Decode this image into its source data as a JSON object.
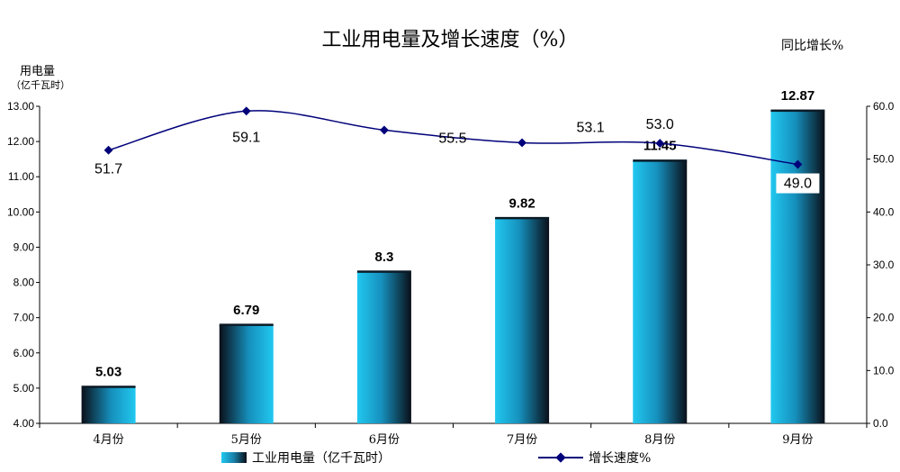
{
  "header": {
    "title": "工业用电量及增长速度（%）",
    "left_unit_line1": "用电量",
    "left_unit_line2": "（亿千瓦时）",
    "right_unit": "同比增长%"
  },
  "legend": {
    "bar_label": "工业用电量（亿千瓦时）",
    "line_label": "增长速度%"
  },
  "colors": {
    "bar_light": "#21c8f0",
    "bar_dark": "#0a0f18",
    "line": "#00007a"
  },
  "chart_data": {
    "type": "bar",
    "categories": [
      "4月份",
      "5月份",
      "6月份",
      "7月份",
      "8月份",
      "9月份"
    ],
    "series": [
      {
        "name": "工业用电量（亿千瓦时）",
        "type": "bar",
        "axis": "left",
        "values": [
          5.03,
          6.79,
          8.3,
          9.82,
          11.45,
          12.87
        ],
        "labels": [
          "5.03",
          "6.79",
          "8.3",
          "9.82",
          "11.45",
          "12.87"
        ]
      },
      {
        "name": "增长速度%",
        "type": "line",
        "axis": "right",
        "values": [
          51.7,
          59.1,
          55.5,
          53.1,
          53.0,
          49.0
        ],
        "labels": [
          "51.7",
          "59.1",
          "55.5",
          "53.1",
          "53.0",
          "49.0"
        ]
      }
    ],
    "y_left": {
      "ylim": [
        4.0,
        13.0
      ],
      "ticks": [
        "4.00",
        "5.00",
        "6.00",
        "7.00",
        "8.00",
        "9.00",
        "10.00",
        "11.00",
        "12.00",
        "13.00"
      ]
    },
    "y_right": {
      "ylim": [
        0.0,
        60.0
      ],
      "ticks": [
        "0.0",
        "10.0",
        "20.0",
        "30.0",
        "40.0",
        "50.0",
        "60.0"
      ]
    },
    "grid": false
  }
}
